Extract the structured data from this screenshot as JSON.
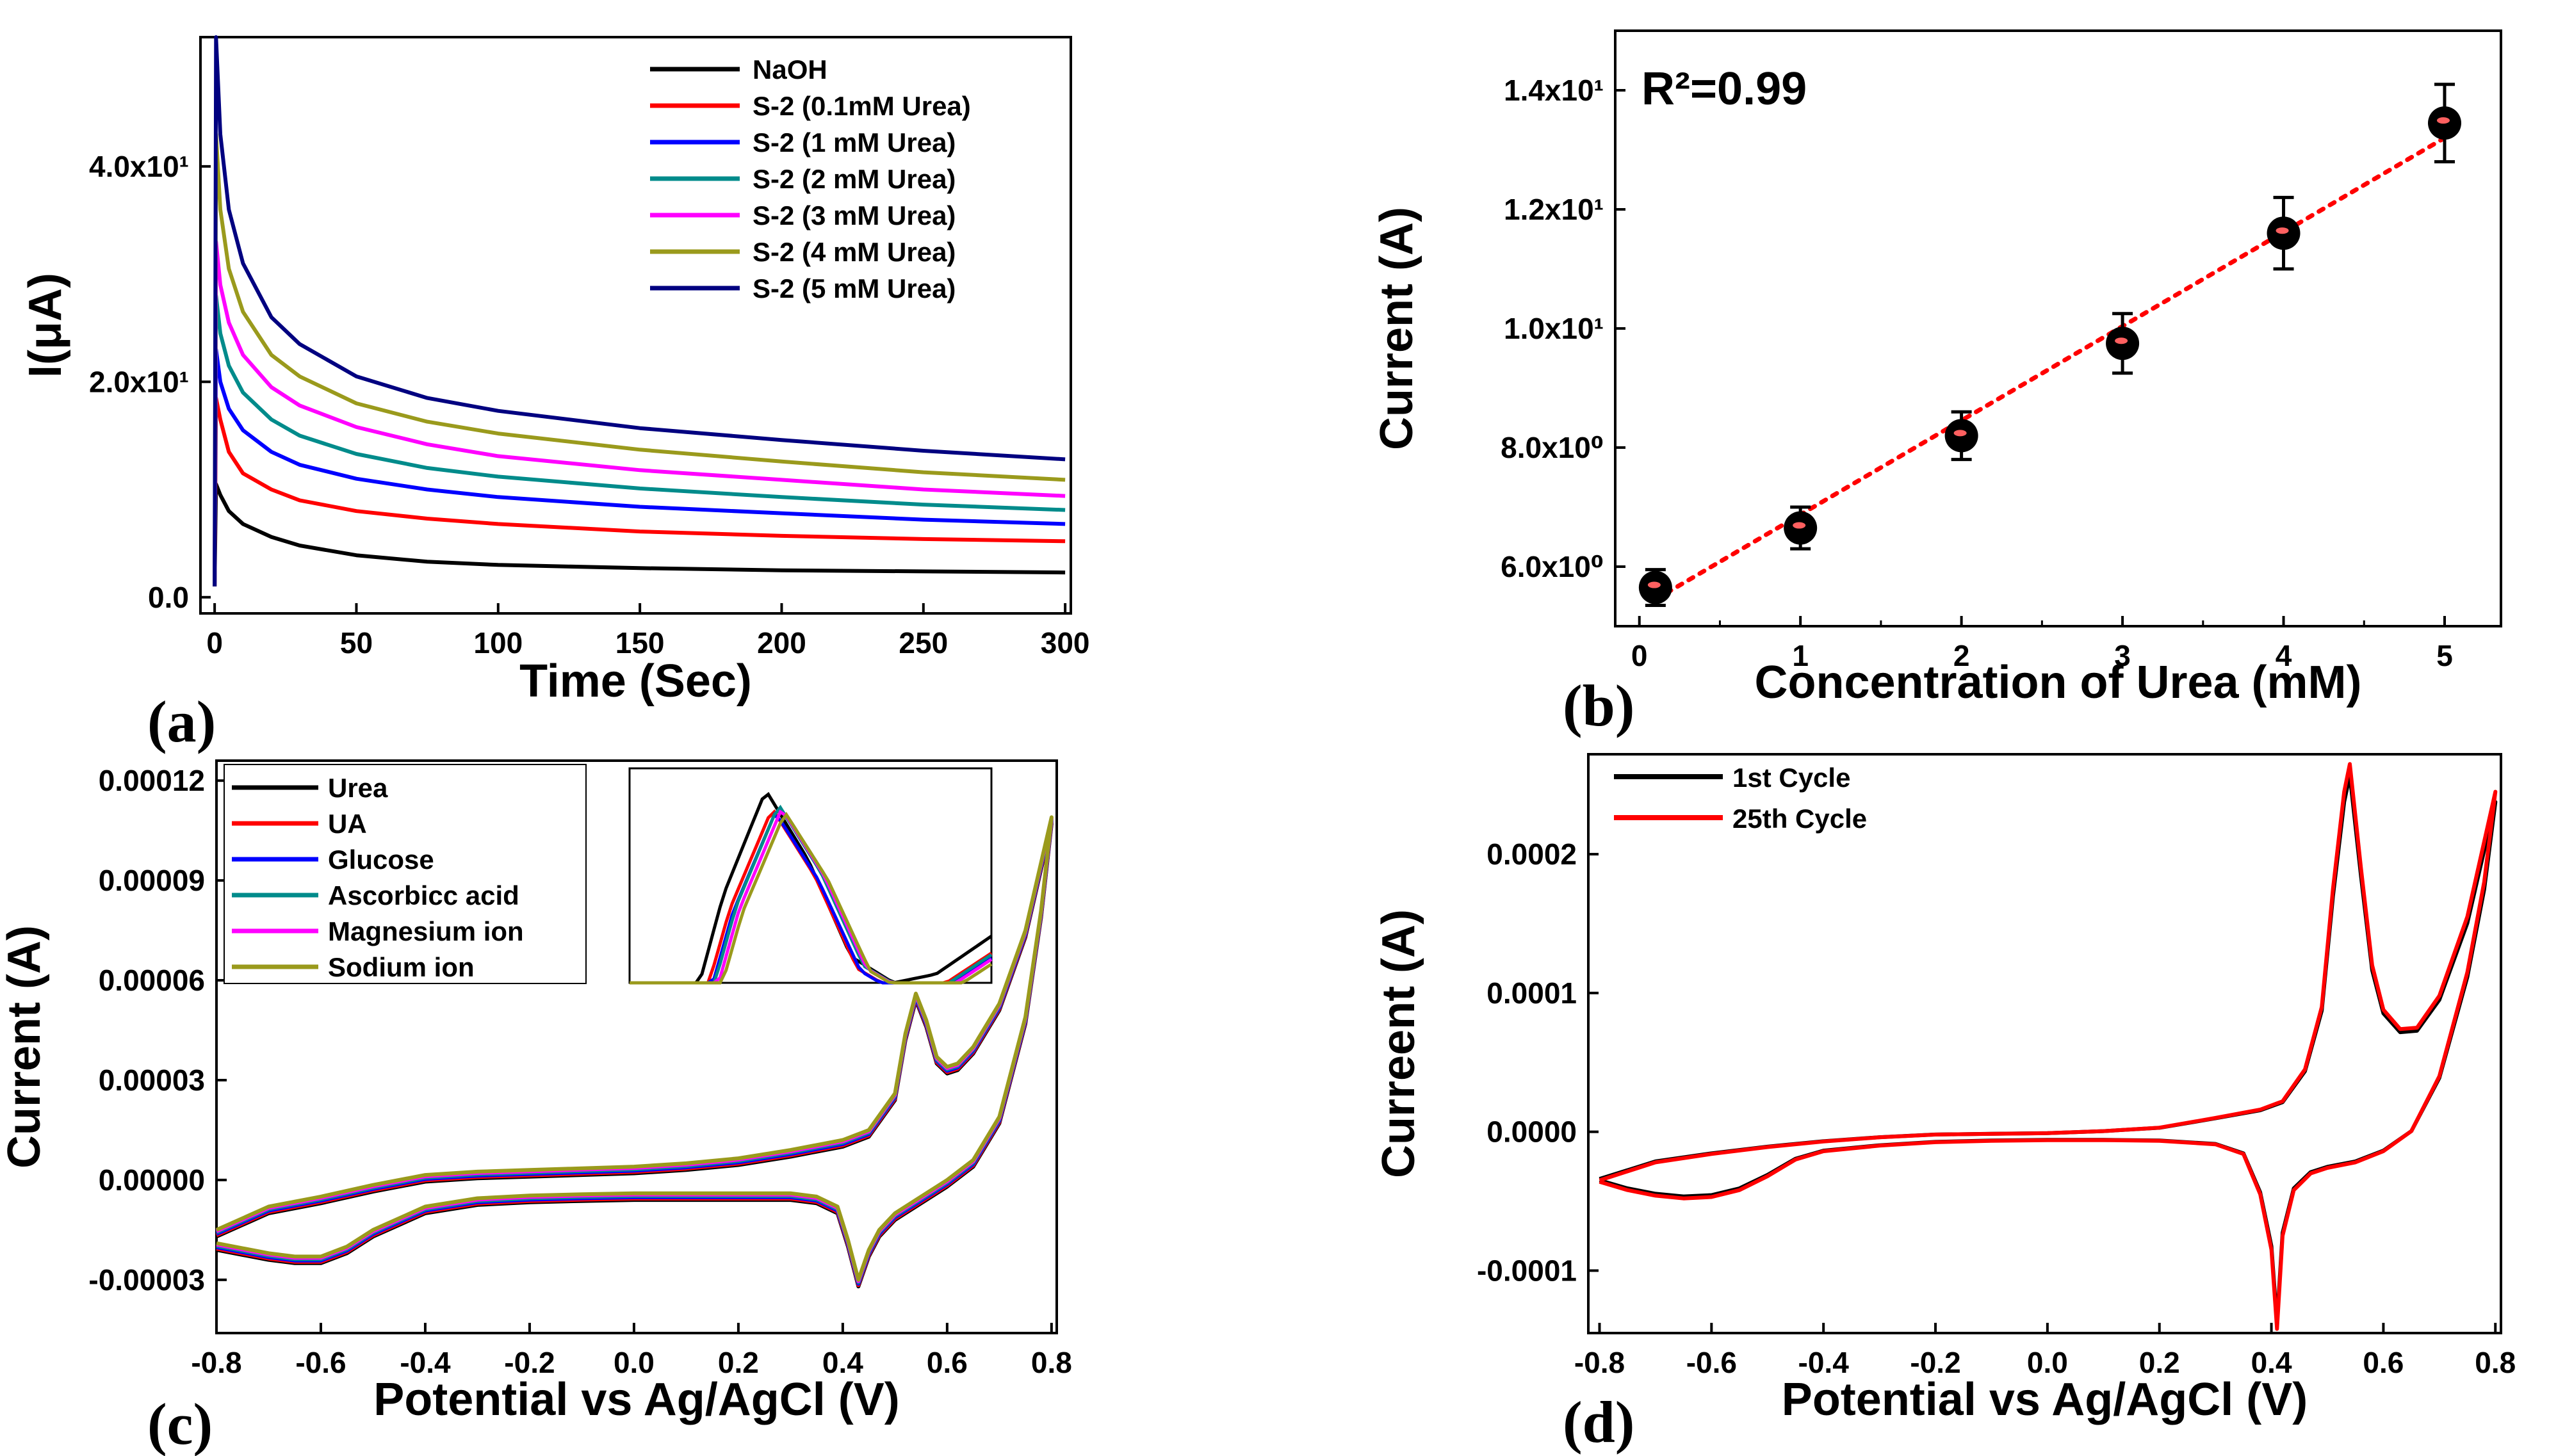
{
  "panels": {
    "a": "(a)",
    "b": "(b)",
    "c": "(c)",
    "d": "(d)"
  },
  "chart_data": [
    {
      "id": "a",
      "type": "line",
      "title": "",
      "xlabel": "Time (Sec)",
      "ylabel": "I(μA)",
      "xlim": [
        -5,
        302
      ],
      "ylim": [
        -1.5,
        52
      ],
      "xticks": [
        0,
        50,
        100,
        150,
        200,
        250,
        300
      ],
      "xtick_labels": [
        "0",
        "50",
        "100",
        "150",
        "200",
        "250",
        "300"
      ],
      "yticks": [
        0,
        20,
        40
      ],
      "ytick_labels": [
        "0.0",
        "2.0x10¹",
        "4.0x10¹"
      ],
      "legend_position": "top-right",
      "series": [
        {
          "name": "NaOH",
          "color": "#000000",
          "x": [
            0,
            0.5,
            2,
            5,
            10,
            20,
            30,
            50,
            75,
            100,
            150,
            200,
            250,
            300
          ],
          "y": [
            1,
            10.5,
            9.5,
            8.0,
            6.8,
            5.6,
            4.8,
            3.9,
            3.3,
            3.0,
            2.7,
            2.5,
            2.4,
            2.3
          ]
        },
        {
          "name": "S-2 (0.1mM Urea)",
          "color": "#ff0000",
          "x": [
            0,
            0.5,
            2,
            5,
            10,
            20,
            30,
            50,
            75,
            100,
            150,
            200,
            250,
            300
          ],
          "y": [
            1,
            18.5,
            16.5,
            13.5,
            11.5,
            10.0,
            9.0,
            8.0,
            7.3,
            6.8,
            6.1,
            5.7,
            5.4,
            5.2
          ]
        },
        {
          "name": "S-2 (1 mM Urea)",
          "color": "#0000ff",
          "x": [
            0,
            0.5,
            2,
            5,
            10,
            20,
            30,
            50,
            75,
            100,
            150,
            200,
            250,
            300
          ],
          "y": [
            1,
            23.0,
            20.0,
            17.5,
            15.5,
            13.5,
            12.3,
            11.0,
            10.0,
            9.3,
            8.4,
            7.8,
            7.2,
            6.8
          ]
        },
        {
          "name": "S-2 (2 mM Urea)",
          "color": "#008b8b",
          "x": [
            0,
            0.5,
            2,
            5,
            10,
            20,
            30,
            50,
            75,
            100,
            150,
            200,
            250,
            300
          ],
          "y": [
            1,
            28.0,
            24.5,
            21.5,
            19.0,
            16.5,
            15.0,
            13.3,
            12.0,
            11.2,
            10.1,
            9.3,
            8.6,
            8.1
          ]
        },
        {
          "name": "S-2 (3 mM Urea)",
          "color": "#ff00ff",
          "x": [
            0,
            0.5,
            2,
            5,
            10,
            20,
            30,
            50,
            75,
            100,
            150,
            200,
            250,
            300
          ],
          "y": [
            1,
            33.0,
            29.0,
            25.5,
            22.5,
            19.5,
            17.8,
            15.8,
            14.2,
            13.1,
            11.8,
            10.9,
            10.0,
            9.4
          ]
        },
        {
          "name": "S-2 (4 mM Urea)",
          "color": "#9a9a1c",
          "x": [
            0,
            0.5,
            2,
            5,
            10,
            20,
            30,
            50,
            75,
            100,
            150,
            200,
            250,
            300
          ],
          "y": [
            1,
            43.0,
            36.0,
            30.5,
            26.5,
            22.5,
            20.5,
            18.0,
            16.3,
            15.2,
            13.7,
            12.6,
            11.6,
            10.9
          ]
        },
        {
          "name": "S-2 (5 mM Urea)",
          "color": "#000080",
          "x": [
            0,
            0.5,
            2,
            5,
            10,
            20,
            30,
            50,
            75,
            100,
            150,
            200,
            250,
            300
          ],
          "y": [
            1,
            52.0,
            43.0,
            36.0,
            31.0,
            26.0,
            23.5,
            20.5,
            18.5,
            17.3,
            15.7,
            14.6,
            13.6,
            12.8
          ]
        }
      ]
    },
    {
      "id": "b",
      "type": "scatter",
      "title": "",
      "xlabel": "Concentration of Urea (mM)",
      "ylabel": "Current (A)",
      "xlim": [
        -0.15,
        5.35
      ],
      "ylim": [
        5.0,
        15.0
      ],
      "xticks": [
        0,
        1,
        2,
        3,
        4,
        5
      ],
      "xtick_labels": [
        "0",
        "1",
        "2",
        "3",
        "4",
        "5"
      ],
      "yticks": [
        6,
        8,
        10,
        12,
        14
      ],
      "ytick_labels": [
        "6.0x10⁰",
        "8.0x10⁰",
        "1.0x10¹",
        "1.2x10¹",
        "1.4x10¹"
      ],
      "annotation": "R²=0.99",
      "points": {
        "x": [
          0.1,
          1,
          2,
          3,
          4,
          5
        ],
        "y": [
          5.65,
          6.65,
          8.2,
          9.75,
          11.6,
          13.45
        ],
        "err": [
          0.3,
          0.35,
          0.4,
          0.5,
          0.6,
          0.65
        ]
      },
      "fit": {
        "x": [
          0.1,
          5
        ],
        "y": [
          5.45,
          13.2
        ],
        "color": "#ff0000"
      }
    },
    {
      "id": "c",
      "type": "line",
      "title": "",
      "xlabel": "Potential vs Ag/AgCl (V)",
      "ylabel": "Current (A)",
      "xlim": [
        -0.8,
        0.81
      ],
      "ylim": [
        -4.6e-05,
        0.000126
      ],
      "xticks": [
        -0.8,
        -0.6,
        -0.4,
        -0.2,
        0.0,
        0.2,
        0.4,
        0.6,
        0.8
      ],
      "xtick_labels": [
        "-0.8",
        "-0.6",
        "-0.4",
        "-0.2",
        "0.0",
        "0.2",
        "0.4",
        "0.6",
        "0.8"
      ],
      "yticks": [
        -3e-05,
        0,
        3e-05,
        6e-05,
        9e-05,
        0.00012
      ],
      "ytick_labels": [
        "-0.00003",
        "0.00000",
        "0.00003",
        "0.00006",
        "0.00009",
        "0.00012"
      ],
      "legend_position": "top-left",
      "inset": "zoomed view of the oxidation peak",
      "series": [
        {
          "name": "Urea",
          "color": "#000000"
        },
        {
          "name": "UA",
          "color": "#ff0000"
        },
        {
          "name": "Glucose",
          "color": "#0000ff"
        },
        {
          "name": "Ascorbicc acid",
          "color": "#008b8b"
        },
        {
          "name": "Magnesium ion",
          "color": "#ff00ff"
        },
        {
          "name": "Sodium ion",
          "color": "#9a9a1c"
        }
      ],
      "cv_forward": {
        "x": [
          -0.8,
          -0.7,
          -0.6,
          -0.5,
          -0.4,
          -0.3,
          -0.2,
          -0.1,
          0.0,
          0.1,
          0.2,
          0.3,
          0.4,
          0.45,
          0.5,
          0.52,
          0.54,
          0.56,
          0.58,
          0.6,
          0.62,
          0.65,
          0.7,
          0.75,
          0.8
        ],
        "y": [
          -1.6e-05,
          -9e-06,
          -6e-06,
          -2.5e-06,
          5e-07,
          1.5e-06,
          2e-06,
          2.5e-06,
          3e-06,
          4e-06,
          5.5e-06,
          8e-06,
          1.1e-05,
          1.4e-05,
          2.5e-05,
          4.3e-05,
          5.5e-05,
          4.7e-05,
          3.6e-05,
          3.3e-05,
          3.4e-05,
          3.9e-05,
          5.2e-05,
          7.4e-05,
          0.000108
        ]
      },
      "cv_reverse": {
        "x": [
          0.8,
          0.78,
          0.75,
          0.7,
          0.65,
          0.6,
          0.55,
          0.5,
          0.47,
          0.45,
          0.43,
          0.41,
          0.39,
          0.35,
          0.3,
          0.2,
          0.1,
          0.0,
          -0.1,
          -0.2,
          -0.3,
          -0.4,
          -0.5,
          -0.55,
          -0.6,
          -0.65,
          -0.7,
          -0.8
        ],
        "y": [
          0.000108,
          8e-05,
          4.8e-05,
          1.8e-05,
          5e-06,
          -1e-06,
          -6e-06,
          -1.1e-05,
          -1.6e-05,
          -2.2e-05,
          -3.1e-05,
          -1.9e-05,
          -9e-06,
          -6e-06,
          -5e-06,
          -5e-06,
          -5e-06,
          -5e-06,
          -5.3e-06,
          -5.7e-06,
          -6.5e-06,
          -9e-06,
          -1.6e-05,
          -2.1e-05,
          -2.4e-05,
          -2.4e-05,
          -2.3e-05,
          -2e-05
        ]
      }
    },
    {
      "id": "d",
      "type": "line",
      "title": "",
      "xlabel": "Potential vs Ag/AgCl (V)",
      "ylabel": "Curreent (A)",
      "xlim": [
        -0.82,
        0.81
      ],
      "ylim": [
        -0.000145,
        0.000272
      ],
      "xticks": [
        -0.8,
        -0.6,
        -0.4,
        -0.2,
        0.0,
        0.2,
        0.4,
        0.6,
        0.8
      ],
      "xtick_labels": [
        "-0.8",
        "-0.6",
        "-0.4",
        "-0.2",
        "0.0",
        "0.2",
        "0.4",
        "0.6",
        "0.8"
      ],
      "yticks": [
        -0.0001,
        0,
        0.0001,
        0.0002
      ],
      "ytick_labels": [
        "-0.0001",
        "0.0000",
        "0.0001",
        "0.0002"
      ],
      "legend_position": "top-left",
      "series": [
        {
          "name": "1st Cycle",
          "color": "#000000",
          "scale": 0.97
        },
        {
          "name": "25th Cycle",
          "color": "#ff0000",
          "scale": 1.0
        }
      ],
      "cv_forward": {
        "x": [
          -0.8,
          -0.7,
          -0.6,
          -0.5,
          -0.4,
          -0.3,
          -0.2,
          -0.1,
          0.0,
          0.1,
          0.2,
          0.3,
          0.38,
          0.42,
          0.46,
          0.49,
          0.51,
          0.53,
          0.54,
          0.56,
          0.58,
          0.6,
          0.63,
          0.66,
          0.7,
          0.75,
          0.8
        ],
        "y": [
          -3.5e-05,
          -2.2e-05,
          -1.6e-05,
          -1.1e-05,
          -7e-06,
          -4e-06,
          -2e-06,
          -1.5e-06,
          -1e-06,
          5e-07,
          3e-06,
          1e-05,
          1.6e-05,
          2.2e-05,
          4.5e-05,
          9e-05,
          0.000175,
          0.000245,
          0.000265,
          0.00019,
          0.00012,
          8.8e-05,
          7.4e-05,
          7.5e-05,
          9.8e-05,
          0.000155,
          0.000245
        ]
      },
      "cv_reverse": {
        "x": [
          0.8,
          0.78,
          0.75,
          0.7,
          0.65,
          0.6,
          0.55,
          0.5,
          0.47,
          0.44,
          0.42,
          0.41,
          0.4,
          0.38,
          0.35,
          0.3,
          0.2,
          0.1,
          0.0,
          -0.1,
          -0.2,
          -0.3,
          -0.4,
          -0.45,
          -0.5,
          -0.55,
          -0.6,
          -0.65,
          -0.7,
          -0.75,
          -0.8
        ],
        "y": [
          0.000245,
          0.00018,
          0.000115,
          4e-05,
          5e-07,
          -1.4e-05,
          -2.2e-05,
          -2.6e-05,
          -3e-05,
          -4.2e-05,
          -7.5e-05,
          -0.000142,
          -8.5e-05,
          -4.5e-05,
          -1.6e-05,
          -9e-06,
          -6.5e-06,
          -6e-06,
          -6e-06,
          -6.5e-06,
          -7.5e-06,
          -1e-05,
          -1.4e-05,
          -2e-05,
          -3.2e-05,
          -4.2e-05,
          -4.7e-05,
          -4.8e-05,
          -4.6e-05,
          -4.2e-05,
          -3.6e-05
        ]
      }
    }
  ]
}
